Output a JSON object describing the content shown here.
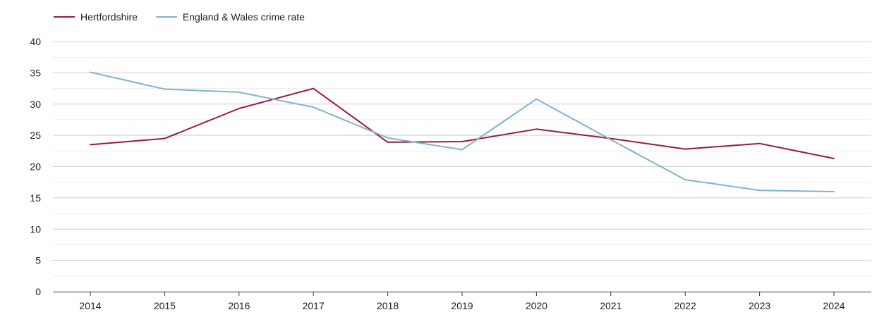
{
  "chart_data": {
    "type": "line",
    "title": "",
    "xlabel": "",
    "ylabel": "",
    "categories": [
      "2014",
      "2015",
      "2016",
      "2017",
      "2018",
      "2019",
      "2020",
      "2021",
      "2022",
      "2023",
      "2024"
    ],
    "ylim": [
      0,
      40
    ],
    "yticks": [
      "0",
      "5",
      "10",
      "15",
      "20",
      "25",
      "30",
      "35",
      "40"
    ],
    "grid": true,
    "legend_position": "top-left",
    "series": [
      {
        "name": "Hertfordshire",
        "color": "#9b1b3a",
        "values": [
          23.5,
          24.5,
          29.3,
          32.5,
          23.9,
          24.0,
          26.0,
          24.5,
          22.8,
          23.7,
          21.3
        ]
      },
      {
        "name": "England & Wales crime rate",
        "color": "#7fb3cf",
        "values": [
          35.1,
          32.4,
          31.9,
          29.5,
          24.6,
          22.7,
          30.8,
          24.3,
          17.9,
          16.2,
          16.0
        ]
      }
    ]
  }
}
